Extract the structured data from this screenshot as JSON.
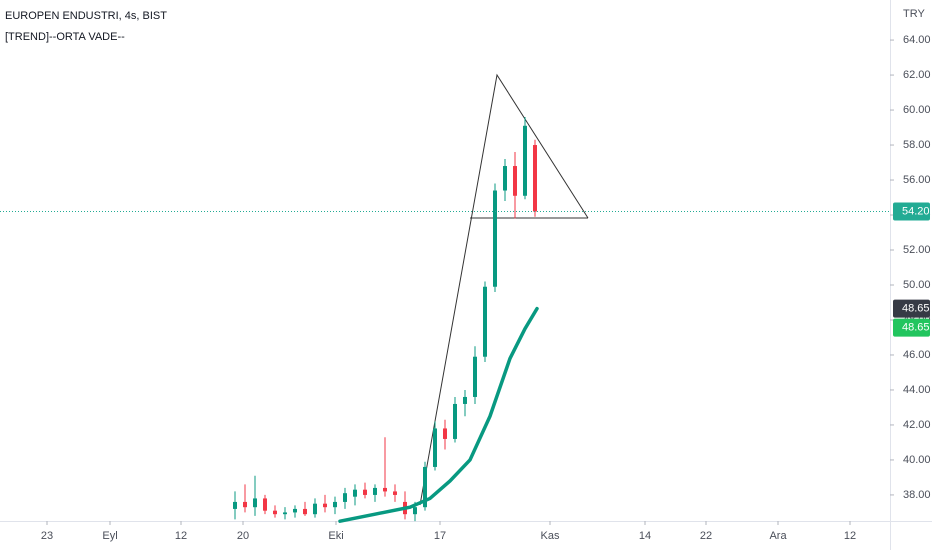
{
  "chart_data": {
    "type": "candlestick",
    "title": "EUROPEN ENDUSTRI, 4s, BIST",
    "subtitle": "[TREND]--ORTA VADE--",
    "currency": "TRY",
    "x": [
      47,
      49,
      51,
      53,
      55,
      57,
      59,
      61,
      63,
      65,
      67,
      69,
      71,
      73,
      75,
      77,
      79,
      81,
      83,
      85,
      87,
      89,
      91,
      93,
      95,
      97,
      99,
      101,
      103,
      105,
      107
    ],
    "open": [
      37.2,
      37.6,
      37.3,
      37.8,
      37.1,
      36.9,
      37.0,
      37.2,
      36.9,
      37.5,
      37.3,
      37.6,
      37.9,
      38.3,
      38.0,
      38.4,
      38.2,
      37.6,
      36.9,
      37.3,
      39.6,
      41.8,
      41.2,
      43.2,
      43.6,
      45.9,
      49.9,
      55.4,
      56.8,
      55.1,
      58.0
    ],
    "high": [
      38.2,
      38.6,
      39.1,
      38.0,
      37.4,
      37.3,
      37.4,
      37.6,
      37.8,
      38.0,
      37.9,
      38.4,
      38.6,
      38.7,
      38.6,
      41.3,
      38.6,
      38.2,
      37.6,
      39.9,
      42.2,
      42.3,
      43.6,
      44.0,
      46.5,
      50.2,
      55.8,
      57.2,
      57.6,
      59.6,
      58.3
    ],
    "low": [
      36.6,
      37.0,
      36.8,
      36.9,
      36.7,
      36.6,
      36.7,
      36.8,
      36.7,
      37.0,
      36.9,
      37.2,
      37.4,
      37.8,
      37.6,
      37.9,
      37.6,
      36.6,
      36.5,
      37.1,
      39.4,
      40.6,
      41.0,
      42.5,
      43.2,
      45.6,
      49.6,
      54.8,
      53.8,
      54.9,
      53.9
    ],
    "close": [
      37.6,
      37.3,
      37.8,
      37.1,
      36.9,
      37.0,
      37.2,
      36.9,
      37.5,
      37.3,
      37.6,
      38.1,
      38.3,
      38.0,
      38.4,
      38.2,
      38.0,
      36.9,
      37.3,
      39.6,
      41.8,
      41.2,
      43.2,
      43.6,
      45.9,
      49.9,
      55.4,
      56.8,
      55.1,
      59.1,
      54.2
    ],
    "up_color": "#089981",
    "down_color": "#f23645",
    "overlay": {
      "x": [
        68,
        75,
        82,
        86,
        90,
        94,
        98,
        102,
        105,
        107.4
      ],
      "values": [
        36.5,
        36.9,
        37.3,
        37.8,
        38.8,
        40.0,
        42.5,
        45.8,
        47.5,
        48.65
      ],
      "color": "#089981"
    },
    "price_labels": [
      {
        "value": 54.2,
        "label": "54.20",
        "color": "#22ab94"
      },
      {
        "value": 48.65,
        "label": "48.65",
        "color": "#363a45"
      },
      {
        "value": 48.65,
        "label": "48.65",
        "color": "#22c55e"
      }
    ],
    "xlim": [
      0,
      178
    ],
    "ylim": [
      36.51,
      66.29
    ],
    "xticks": [
      {
        "value": 9.4,
        "label": "23"
      },
      {
        "value": 22,
        "label": "Eyl"
      },
      {
        "value": 36.2,
        "label": "12"
      },
      {
        "value": 48.6,
        "label": "20"
      },
      {
        "value": 67.2,
        "label": "Eki"
      },
      {
        "value": 88,
        "label": "17"
      },
      {
        "value": 110,
        "label": "Kas"
      },
      {
        "value": 129,
        "label": "14"
      },
      {
        "value": 141.2,
        "label": "22"
      },
      {
        "value": 155.6,
        "label": "Ara"
      },
      {
        "value": 170,
        "label": "12"
      }
    ],
    "yticks": [
      {
        "value": 38,
        "label": "38.00"
      },
      {
        "value": 40,
        "label": "40.00"
      },
      {
        "value": 42,
        "label": "42.00"
      },
      {
        "value": 44,
        "label": "44.00"
      },
      {
        "value": 46,
        "label": "46.00"
      },
      {
        "value": 48,
        "label": "48.00"
      },
      {
        "value": 50,
        "label": "50.00"
      },
      {
        "value": 52,
        "label": "52.00"
      },
      {
        "value": 54,
        "label": "54.00"
      },
      {
        "value": 56,
        "label": "56.00"
      },
      {
        "value": 58,
        "label": "58.00"
      },
      {
        "value": 60,
        "label": "60.00"
      },
      {
        "value": 62,
        "label": "62.00"
      },
      {
        "value": 64,
        "label": "64.00"
      }
    ],
    "grid": false
  }
}
